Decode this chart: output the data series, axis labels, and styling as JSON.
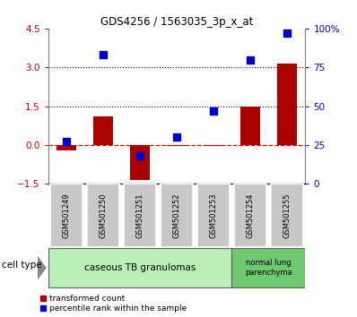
{
  "title": "GDS4256 / 1563035_3p_x_at",
  "samples": [
    "GSM501249",
    "GSM501250",
    "GSM501251",
    "GSM501252",
    "GSM501253",
    "GSM501254",
    "GSM501255"
  ],
  "transformed_counts": [
    -0.2,
    1.1,
    -1.35,
    -0.05,
    -0.04,
    1.5,
    3.15
  ],
  "percentile_ranks": [
    27,
    83,
    18,
    30,
    47,
    80,
    97
  ],
  "left_ylim": [
    -1.5,
    4.5
  ],
  "right_ylim": [
    0,
    100
  ],
  "left_yticks": [
    -1.5,
    0,
    1.5,
    3,
    4.5
  ],
  "right_yticks": [
    0,
    25,
    50,
    75,
    100
  ],
  "right_yticklabels": [
    "0",
    "25",
    "50",
    "75",
    "100%"
  ],
  "hlines": [
    1.5,
    3.0
  ],
  "zero_line_color": "#cc0000",
  "bar_color": "#aa0000",
  "dot_color": "#0000cc",
  "dot_size": 40,
  "bar_width": 0.55,
  "cell_type_label": "cell type",
  "group_colors": [
    "#b8f0b8",
    "#70c870"
  ],
  "group1_label": "caseous TB granulomas",
  "group2_label": "normal lung\nparenchyma",
  "legend_label1": "transformed count",
  "legend_label2": "percentile rank within the sample",
  "tick_color_left": "#cc0000",
  "tick_color_right": "#0000cc",
  "sample_label_bg": "#c8c8c8",
  "sample_label_edge": "#ffffff"
}
